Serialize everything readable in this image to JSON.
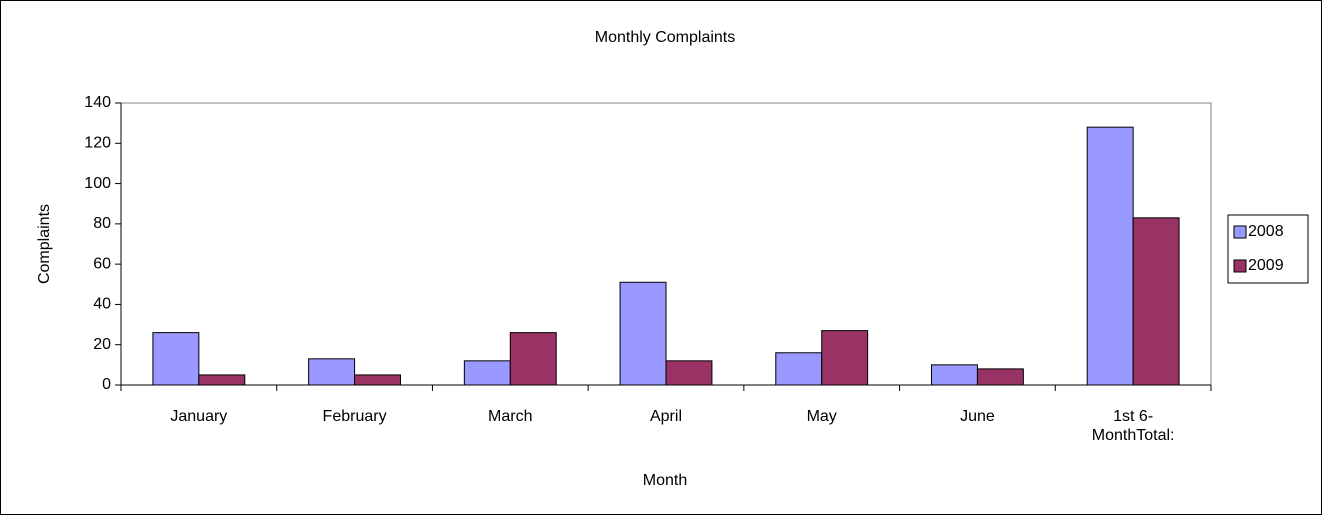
{
  "chart_data": {
    "type": "bar",
    "title": "Monthly Complaints",
    "x_label": "Month",
    "y_label": "Complaints",
    "categories": [
      "January",
      "February",
      "March",
      "April",
      "May",
      "June",
      "1st 6-MonthTotal:"
    ],
    "series": [
      {
        "name": "2008",
        "color": "#9999ff",
        "values": [
          26,
          13,
          12,
          51,
          16,
          10,
          128
        ]
      },
      {
        "name": "2009",
        "color": "#993366",
        "values": [
          5,
          5,
          26,
          12,
          27,
          8,
          83
        ]
      }
    ],
    "ylim": [
      0,
      140
    ],
    "yticks": [
      0,
      20,
      40,
      60,
      80,
      100,
      120,
      140
    ],
    "legend": "right"
  }
}
